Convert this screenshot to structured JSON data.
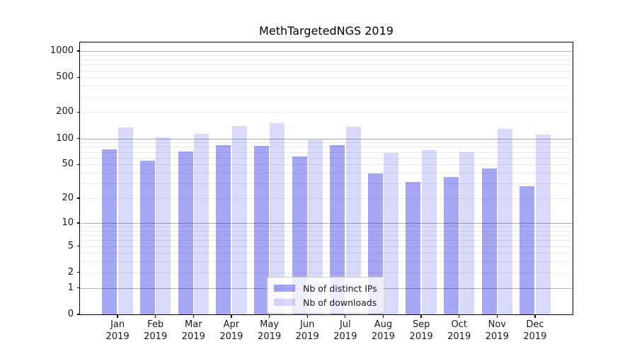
{
  "chart_data": {
    "type": "bar",
    "title": "MethTargetedNGS 2019",
    "categories": [
      "Jan",
      "Feb",
      "Mar",
      "Apr",
      "May",
      "Jun",
      "Jul",
      "Aug",
      "Sep",
      "Oct",
      "Nov",
      "Dec"
    ],
    "x_year": "2019",
    "series": [
      {
        "name": "Nb of distinct IPs",
        "color": "rgba(0,0,224,0.35)",
        "values": [
          75,
          55,
          71,
          83,
          82,
          62,
          83,
          39,
          31,
          36,
          45,
          28
        ]
      },
      {
        "name": "Nb of downloads",
        "color": "rgba(0,0,224,0.15)",
        "values": [
          134,
          102,
          113,
          140,
          150,
          97,
          137,
          68,
          73,
          70,
          130,
          110
        ]
      }
    ],
    "yscale": "log1p",
    "ylim": [
      0,
      1250
    ],
    "yticks": [
      0,
      1,
      2,
      5,
      10,
      20,
      50,
      100,
      200,
      500,
      1000
    ],
    "grid": {
      "major_at": [
        1,
        10,
        100,
        1000
      ],
      "major_color": "#b0b0b0",
      "minor_color": "#e9e9e9"
    },
    "legend": {
      "position": "lower center"
    }
  }
}
